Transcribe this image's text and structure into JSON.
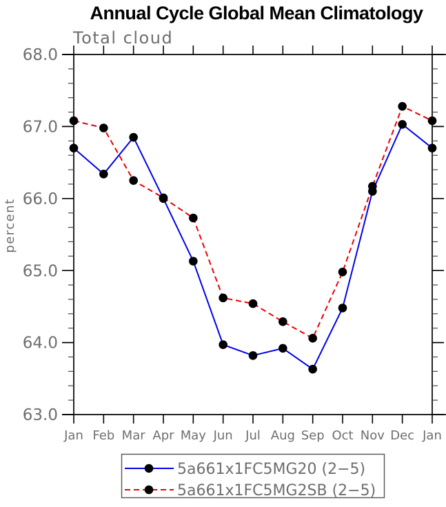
{
  "window": {
    "background": "#ffffff"
  },
  "chart_data": {
    "type": "line",
    "title": "Annual Cycle Global Mean Climatology",
    "subtitle": "Total cloud",
    "ylabel": "percent",
    "xlabel": "",
    "ylim": [
      63.0,
      68.0
    ],
    "ytick_interval": 1.0,
    "yminor_interval": 0.2,
    "ytick_labels": [
      "68.0",
      "67.0",
      "66.0",
      "65.0",
      "64.0",
      "63.0"
    ],
    "categories": [
      "Jan",
      "Feb",
      "Mar",
      "Apr",
      "May",
      "Jun",
      "Jul",
      "Aug",
      "Sep",
      "Oct",
      "Nov",
      "Dec",
      "Jan"
    ],
    "grid": false,
    "legend_position": "bottom-center",
    "series": [
      {
        "name": "5a661x1FC5MG20 (2−5)",
        "color": "#0000ee",
        "style": "solid",
        "marker": "circle",
        "marker_color": "#000000",
        "values": [
          66.7,
          66.34,
          66.85,
          66.0,
          65.13,
          63.97,
          63.82,
          63.92,
          63.63,
          64.48,
          66.1,
          67.03,
          66.7
        ]
      },
      {
        "name": "5a661x1FC5MG2SB (2−5)",
        "color": "#ee0000",
        "style": "dashed",
        "marker": "circle",
        "marker_color": "#000000",
        "values": [
          67.08,
          66.98,
          66.25,
          66.01,
          65.73,
          64.62,
          64.54,
          64.29,
          64.06,
          64.98,
          66.17,
          67.28,
          67.08
        ]
      }
    ],
    "colors": {
      "axis": "#000000",
      "minor_tick": "#444444",
      "labels": "#6e6e6e",
      "legend_border": "#555555"
    }
  }
}
